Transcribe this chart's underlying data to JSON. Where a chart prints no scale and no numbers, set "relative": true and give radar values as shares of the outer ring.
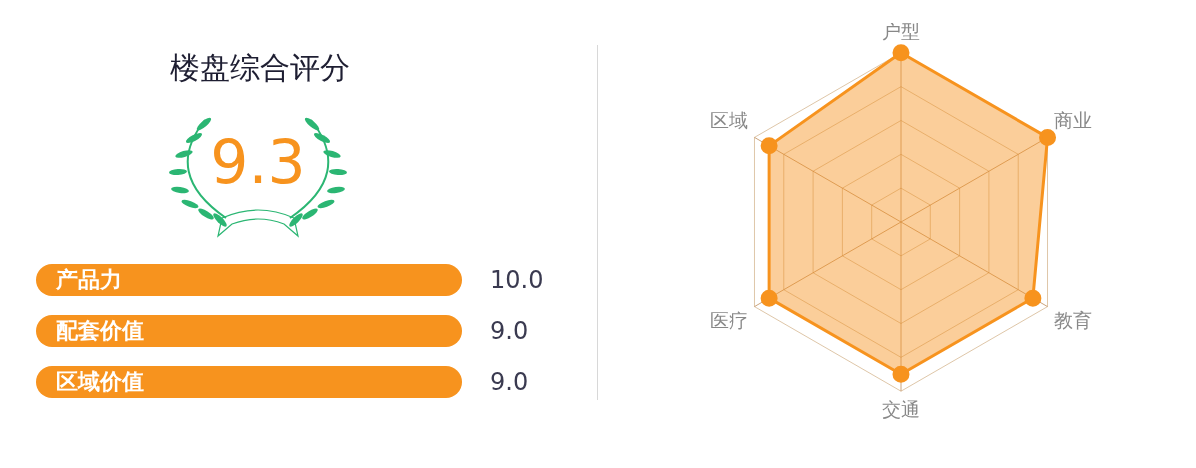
{
  "chart_data": [
    {
      "type": "other",
      "title": "楼盘综合评分",
      "annotations": [
        "9.3",
        "10.0",
        "9.0",
        "9.0"
      ],
      "categories": [
        "产品力",
        "配套价值",
        "区域价值"
      ],
      "color": "#f7931e"
    },
    {
      "type": "radar",
      "relative": true,
      "categories": [
        "户型",
        "商业",
        "教育",
        "交通",
        "医疗",
        "区域"
      ],
      "series": [
        {
          "color": "#f7931e",
          "values": [
            1.0,
            1.0,
            0.9,
            0.9,
            0.9,
            0.9
          ]
        }
      ],
      "marker": "circle",
      "legend": false
    }
  ]
}
